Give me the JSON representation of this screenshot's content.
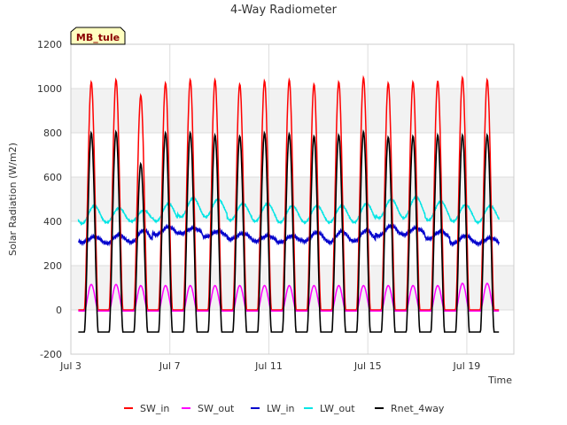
{
  "chart_data": {
    "type": "line",
    "title": "4-Way Radiometer",
    "xlabel": "Time",
    "ylabel": "Solar Radiation (W/m2)",
    "site_label": "MB_tule",
    "x_unit": "day (Jul 3 = day 0)",
    "xlim": [
      0,
      17.9
    ],
    "ylim": [
      -200,
      1200
    ],
    "yticks": [
      -200,
      0,
      200,
      400,
      600,
      800,
      1000,
      1200
    ],
    "xticks": [
      {
        "day": 0,
        "label": "Jul 3"
      },
      {
        "day": 4,
        "label": "Jul 7"
      },
      {
        "day": 8,
        "label": "Jul 11"
      },
      {
        "day": 12,
        "label": "Jul 15"
      },
      {
        "day": 16,
        "label": "Jul 19"
      }
    ],
    "grid": true,
    "legend_position": "bottom",
    "day_start": 0.3,
    "day_end": 17.3,
    "series": [
      {
        "name": "SW_in",
        "color": "#ff0000",
        "daily_peak": [
          1030,
          1040,
          970,
          1025,
          1040,
          1040,
          1020,
          1035,
          1040,
          1020,
          1030,
          1050,
          1025,
          1030,
          1035,
          1050,
          1040
        ],
        "night": 0
      },
      {
        "name": "SW_out",
        "color": "#ff00ff",
        "daily_peak": [
          115,
          115,
          110,
          110,
          110,
          110,
          110,
          110,
          110,
          110,
          110,
          110,
          110,
          110,
          110,
          120,
          120
        ],
        "night": -5
      },
      {
        "name": "LW_in",
        "color": "#0000cc",
        "daily_max": [
          330,
          340,
          360,
          375,
          370,
          355,
          345,
          335,
          335,
          350,
          355,
          360,
          380,
          370,
          355,
          335,
          325
        ],
        "daily_min": [
          305,
          300,
          305,
          340,
          345,
          330,
          320,
          310,
          305,
          310,
          305,
          310,
          335,
          340,
          320,
          300,
          300
        ]
      },
      {
        "name": "LW_out",
        "color": "#00e5e5",
        "daily_max": [
          470,
          460,
          450,
          480,
          505,
          500,
          480,
          480,
          470,
          470,
          470,
          480,
          500,
          510,
          490,
          475,
          470
        ],
        "daily_min": [
          390,
          395,
          400,
          400,
          420,
          420,
          405,
          400,
          395,
          395,
          395,
          395,
          415,
          415,
          405,
          400,
          395
        ]
      },
      {
        "name": "Rnet_4way",
        "color": "#000000",
        "daily_peak": [
          800,
          805,
          660,
          800,
          800,
          790,
          785,
          800,
          795,
          785,
          790,
          805,
          780,
          785,
          790,
          790,
          790
        ],
        "night": -100
      }
    ]
  }
}
